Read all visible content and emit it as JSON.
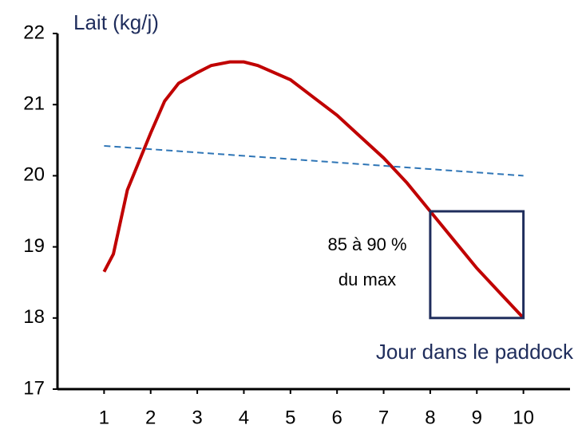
{
  "chart_data": {
    "type": "line",
    "y_label": "Lait (kg/j)",
    "x_label": "Jour dans le paddock",
    "annotation": [
      "85 à 90 %",
      "du max"
    ],
    "xlim": [
      0,
      11
    ],
    "xticks": [
      1,
      2,
      3,
      4,
      5,
      6,
      7,
      8,
      9,
      10
    ],
    "ylim": [
      17,
      22
    ],
    "yticks": [
      17,
      18,
      19,
      20,
      21,
      22
    ],
    "series": [
      {
        "color": "#c00000",
        "style": "solid",
        "x": [
          1,
          1.2,
          1.5,
          2,
          2.3,
          2.6,
          3,
          3.3,
          3.7,
          4,
          4.3,
          5,
          5.5,
          6,
          6.5,
          7,
          7.5,
          8,
          8.5,
          9,
          9.5,
          10
        ],
        "values": [
          18.65,
          18.9,
          19.8,
          20.6,
          21.05,
          21.3,
          21.45,
          21.55,
          21.6,
          21.6,
          21.55,
          21.35,
          21.1,
          20.85,
          20.55,
          20.25,
          19.9,
          19.5,
          19.1,
          18.7,
          18.35,
          18.0
        ]
      },
      {
        "color": "#2e75b6",
        "style": "dashed",
        "x": [
          1,
          10
        ],
        "values": [
          20.42,
          20.0
        ]
      }
    ],
    "highlight_box": {
      "x": [
        8,
        10
      ],
      "y": [
        18,
        19.5
      ],
      "color": "#1f2d5c"
    }
  }
}
